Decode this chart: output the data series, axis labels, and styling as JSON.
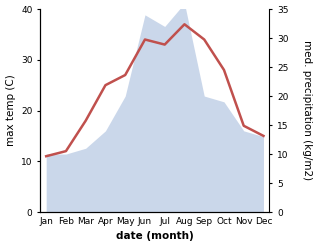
{
  "months": [
    "Jan",
    "Feb",
    "Mar",
    "Apr",
    "May",
    "Jun",
    "Jul",
    "Aug",
    "Sep",
    "Oct",
    "Nov",
    "Dec"
  ],
  "temperature": [
    11,
    12,
    18,
    25,
    27,
    34,
    33,
    37,
    34,
    28,
    17,
    15
  ],
  "precipitation": [
    10,
    10,
    11,
    14,
    20,
    34,
    32,
    36,
    20,
    19,
    14,
    13
  ],
  "temp_color": "#c0504d",
  "precip_fill_color": "#c5d3e8",
  "left_ylim": [
    0,
    40
  ],
  "right_ylim": [
    0,
    35
  ],
  "left_yticks": [
    0,
    10,
    20,
    30,
    40
  ],
  "right_yticks": [
    0,
    5,
    10,
    15,
    20,
    25,
    30,
    35
  ],
  "xlabel": "date (month)",
  "ylabel_left": "max temp (C)",
  "ylabel_right": "med. precipitation (kg/m2)",
  "label_fontsize": 7.5,
  "tick_fontsize": 6.5,
  "background_color": "#ffffff",
  "spine_color": "#888888"
}
